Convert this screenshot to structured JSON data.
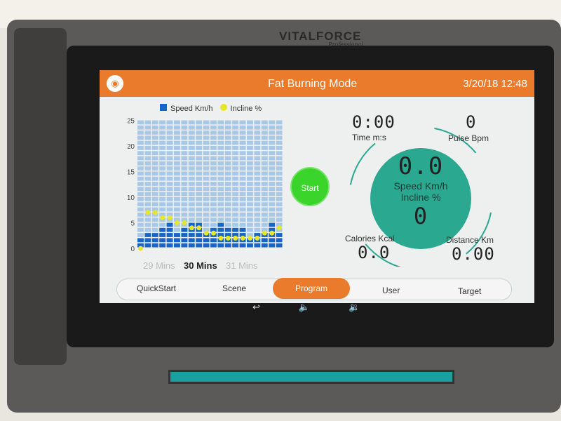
{
  "device": {
    "brand": "VITALFORCE",
    "sub_brand": "Professional"
  },
  "header": {
    "wifi_icon": "wifi-icon",
    "title": "Fat Burning Mode",
    "datetime": "3/20/18 12:48",
    "color": "#ea7a2c"
  },
  "chart_data": {
    "type": "bar",
    "legend": [
      "Speed Km/h",
      "Incline %"
    ],
    "yticks": [
      "25",
      "20",
      "15",
      "10",
      "5",
      "0"
    ],
    "ylim": [
      0,
      25
    ],
    "series": [
      {
        "name": "Speed Km/h",
        "color": "#1864c8",
        "values": [
          2,
          3,
          3,
          4,
          5,
          3,
          4,
          5,
          5,
          3,
          4,
          5,
          4,
          4,
          4,
          2,
          3,
          3,
          5,
          3
        ]
      },
      {
        "name": "Incline %",
        "color": "#e6e62a",
        "values": [
          0,
          7,
          7,
          6,
          6,
          5,
          5,
          4,
          4,
          3,
          3,
          2,
          2,
          2,
          2,
          2,
          2,
          3,
          3,
          4
        ]
      }
    ]
  },
  "time_nav": {
    "prev": "29 Mins",
    "current": "30 Mins",
    "next": "31 Mins"
  },
  "start_label": "Start",
  "stats": {
    "time": {
      "value": "0:00",
      "label": "Time m:s"
    },
    "pulse": {
      "value": "0",
      "label": "Pulse Bpm"
    },
    "speed": {
      "value": "0.0",
      "label": "Speed Km/h"
    },
    "incline": {
      "value": "0",
      "label": "Incline %"
    },
    "calories": {
      "value": "0.0",
      "label": "Calories Kcal"
    },
    "distance": {
      "value": "0.00",
      "label": "Distance Km"
    }
  },
  "tabs": [
    "QuickStart",
    "Scene",
    "Program",
    "User",
    "Target"
  ],
  "active_tab": "Program",
  "navbar": {
    "back": "↩",
    "vol_down": "🔈",
    "vol_up": "🔉"
  }
}
